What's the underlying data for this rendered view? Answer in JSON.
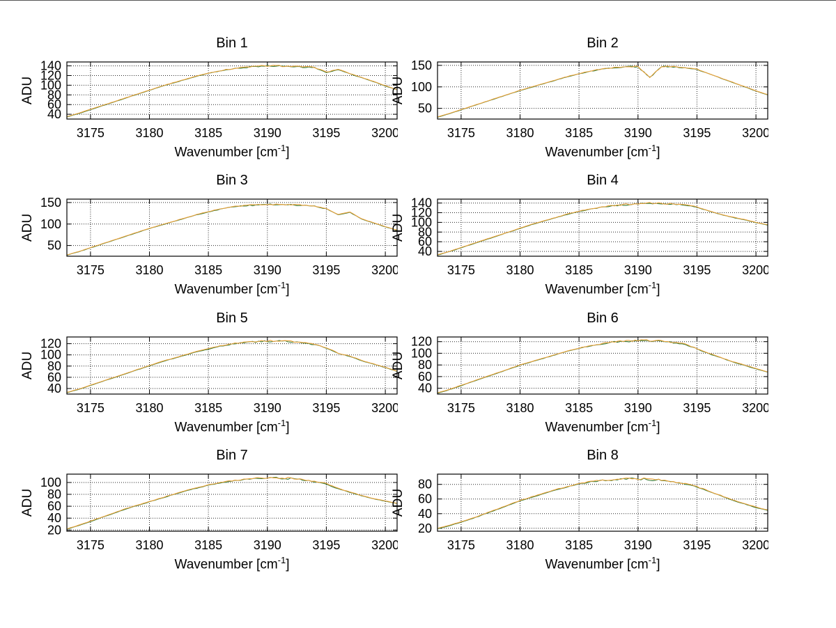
{
  "figure": {
    "background": "#ffffff",
    "ylabel": "ADU",
    "xlabel_prefix": "Wavenumber [cm",
    "xlabel_sup": "-1",
    "xlabel_suffix": "]"
  },
  "chart_data": {
    "type": "line",
    "layout": {
      "rows": 4,
      "cols": 2,
      "grid": "dotted",
      "legend": "none"
    },
    "xlabel": "Wavenumber [cm^-1]",
    "ylabel": "ADU",
    "xlim": [
      3173,
      3201
    ],
    "x_ticks": [
      3175,
      3180,
      3185,
      3190,
      3195,
      3200
    ],
    "series_style": [
      {
        "name": "spectrum-under",
        "color": "#347A34"
      },
      {
        "name": "spectrum-overlay",
        "color": "#ECA23B"
      }
    ],
    "x": [
      3173,
      3174,
      3175,
      3176,
      3177,
      3178,
      3179,
      3180,
      3181,
      3182,
      3183,
      3184,
      3185,
      3186,
      3187,
      3188,
      3189,
      3190,
      3191,
      3192,
      3193,
      3194,
      3195,
      3196,
      3197,
      3198,
      3199,
      3200,
      3201
    ],
    "charts": [
      {
        "title": "Bin 1",
        "ylim": [
          30,
          148
        ],
        "yticks": [
          40,
          60,
          80,
          100,
          120,
          140
        ],
        "values": [
          35,
          42,
          50,
          58,
          66,
          74,
          82,
          90,
          98,
          105,
          112,
          119,
          125,
          130,
          134,
          137,
          139,
          140,
          140,
          139,
          138,
          137,
          127,
          133,
          124,
          116,
          108,
          99,
          91
        ]
      },
      {
        "title": "Bin 2",
        "ylim": [
          25,
          158
        ],
        "yticks": [
          50,
          100,
          150
        ],
        "values": [
          30,
          38,
          47,
          56,
          65,
          74,
          83,
          92,
          100,
          108,
          116,
          124,
          131,
          137,
          142,
          145,
          147,
          148,
          122,
          148,
          147,
          145,
          141,
          131,
          121,
          111,
          101,
          91,
          82
        ]
      },
      {
        "title": "Bin 3",
        "ylim": [
          25,
          158
        ],
        "yticks": [
          50,
          100,
          150
        ],
        "values": [
          28,
          36,
          45,
          54,
          63,
          72,
          81,
          90,
          98,
          106,
          114,
          122,
          129,
          135,
          140,
          143,
          145,
          146,
          146,
          145,
          144,
          142,
          136,
          122,
          128,
          112,
          103,
          94,
          86
        ]
      },
      {
        "title": "Bin 4",
        "ylim": [
          30,
          148
        ],
        "yticks": [
          40,
          60,
          80,
          100,
          120,
          140
        ],
        "values": [
          33,
          40,
          48,
          56,
          64,
          72,
          80,
          88,
          96,
          103,
          110,
          117,
          123,
          128,
          132,
          135,
          137,
          139,
          140,
          139,
          138,
          136,
          132,
          124,
          117,
          111,
          106,
          100,
          95
        ]
      },
      {
        "title": "Bin 5",
        "ylim": [
          30,
          132
        ],
        "yticks": [
          40,
          60,
          80,
          100,
          120
        ],
        "values": [
          33,
          39,
          46,
          53,
          60,
          67,
          74,
          81,
          88,
          94,
          100,
          106,
          111,
          116,
          120,
          122,
          124,
          125,
          125,
          124,
          122,
          119,
          113,
          103,
          98,
          90,
          84,
          78,
          71
        ]
      },
      {
        "title": "Bin 6",
        "ylim": [
          30,
          128
        ],
        "yticks": [
          40,
          60,
          80,
          100,
          120
        ],
        "values": [
          32,
          38,
          45,
          52,
          59,
          66,
          73,
          80,
          86,
          92,
          98,
          104,
          109,
          113,
          117,
          120,
          121,
          122,
          122,
          121,
          119,
          116,
          108,
          100,
          93,
          86,
          80,
          74,
          68
        ]
      },
      {
        "title": "Bin 7",
        "ylim": [
          18,
          114
        ],
        "yticks": [
          20,
          40,
          60,
          80,
          100
        ],
        "values": [
          22,
          28,
          35,
          42,
          49,
          56,
          62,
          68,
          74,
          80,
          86,
          91,
          96,
          100,
          103,
          105,
          107,
          108,
          108,
          107,
          105,
          102,
          98,
          90,
          84,
          78,
          73,
          69,
          65
        ]
      },
      {
        "title": "Bin 8",
        "ylim": [
          16,
          94
        ],
        "yticks": [
          20,
          40,
          60,
          80
        ],
        "values": [
          20,
          24,
          29,
          34,
          40,
          46,
          52,
          58,
          63,
          68,
          73,
          77,
          81,
          84,
          86,
          87,
          88,
          88,
          87,
          86,
          84,
          81,
          77,
          71,
          65,
          59,
          54,
          49,
          45
        ]
      }
    ]
  }
}
